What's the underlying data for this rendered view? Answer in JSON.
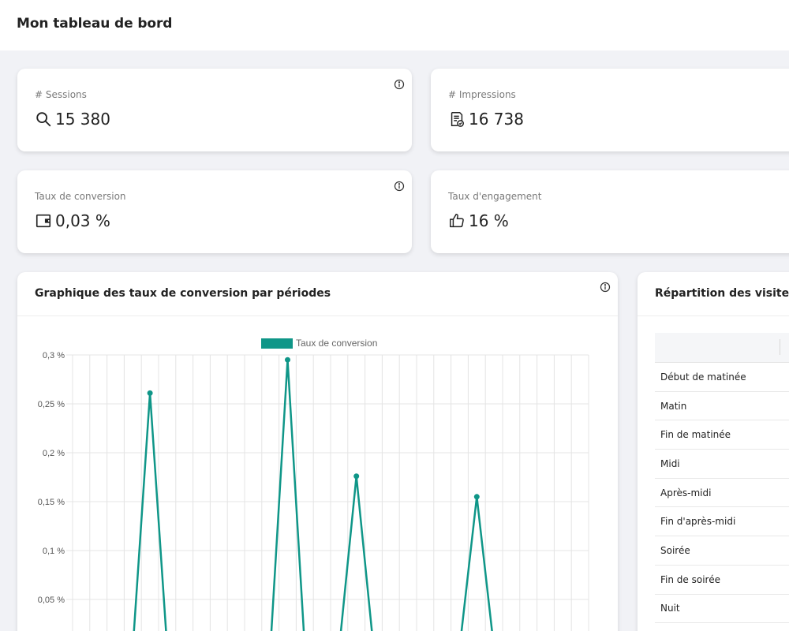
{
  "header": {
    "title": "Mon tableau de bord"
  },
  "kpis": {
    "sessions": {
      "label": "# Sessions",
      "value": "15 380",
      "icon": "search-icon"
    },
    "impressions": {
      "label": "# Impressions",
      "value": "16 738",
      "icon": "document-check-icon"
    },
    "conversion": {
      "label": "Taux de conversion",
      "value": "0,03 %",
      "icon": "wallet-icon"
    },
    "engagement": {
      "label": "Taux d'engagement",
      "value": "16 %",
      "icon": "thumbs-up-icon"
    }
  },
  "chart_panel": {
    "title": "Graphique des taux de conversion par périodes"
  },
  "visits_panel": {
    "title": "Répartition des visites et",
    "rows": [
      "Début de matinée",
      "Matin",
      "Fin de matinée",
      "Midi",
      "Après-midi",
      "Fin d'après-midi",
      "Soirée",
      "Fin de soirée",
      "Nuit"
    ]
  },
  "chart_data": {
    "type": "line",
    "series": [
      {
        "name": "Taux de conversion",
        "color": "#0f9688",
        "values": [
          null,
          null,
          null,
          0,
          0.261,
          0,
          null,
          null,
          null,
          null,
          null,
          0,
          0.295,
          0,
          null,
          0,
          0.176,
          0,
          null,
          null,
          null,
          null,
          0,
          0.155,
          0,
          null,
          null,
          null,
          null,
          null
        ]
      }
    ],
    "y_ticks": [
      "0,3 %",
      "0,25 %",
      "0,2 %",
      "0,15 %",
      "0,1 %",
      "0,05 %"
    ],
    "y_tick_values": [
      0.3,
      0.25,
      0.2,
      0.15,
      0.1,
      0.05
    ],
    "ylim": [
      0,
      0.3
    ],
    "grid": true,
    "legend": "top"
  }
}
